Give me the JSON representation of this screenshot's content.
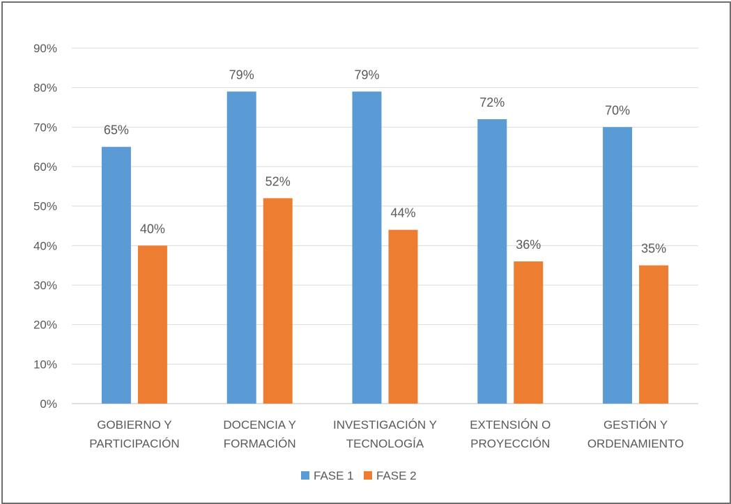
{
  "chart_data": {
    "type": "bar",
    "categories": [
      [
        "GOBIERNO Y",
        "PARTICIPACIÓN"
      ],
      [
        "DOCENCIA Y",
        "FORMACIÓN"
      ],
      [
        "INVESTIGACIÓN Y",
        "TECNOLOGÍA"
      ],
      [
        "EXTENSIÓN O",
        "PROYECCIÓN"
      ],
      [
        "GESTIÓN Y",
        "ORDENAMIENTO"
      ]
    ],
    "series": [
      {
        "name": "FASE 1",
        "color": "#5b9bd5",
        "values": [
          65,
          79,
          79,
          72,
          70
        ],
        "labels": [
          "65%",
          "79%",
          "79%",
          "72%",
          "70%"
        ]
      },
      {
        "name": "FASE 2",
        "color": "#ed7d31",
        "values": [
          40,
          52,
          44,
          36,
          35
        ],
        "labels": [
          "40%",
          "52%",
          "44%",
          "36%",
          "35%"
        ]
      }
    ],
    "ylim": [
      0,
      90
    ],
    "ytick_labels": [
      "0%",
      "10%",
      "20%",
      "30%",
      "40%",
      "50%",
      "60%",
      "70%",
      "80%",
      "90%"
    ],
    "grid": true,
    "legend": "bottom-center",
    "title": "",
    "xlabel": "",
    "ylabel": ""
  }
}
